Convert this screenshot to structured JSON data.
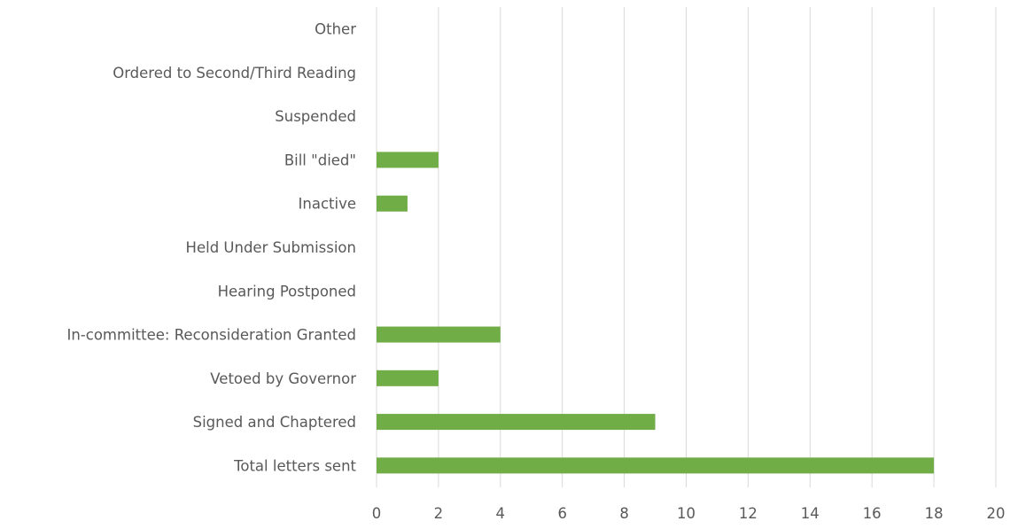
{
  "chart_data": {
    "type": "bar",
    "orientation": "horizontal",
    "categories": [
      "Total letters sent",
      "Signed and Chaptered",
      "Vetoed by Governor",
      "In-committee: Reconsideration Granted",
      "Hearing Postponed",
      "Held Under Submission",
      "Inactive",
      "Bill \"died\"",
      "Suspended",
      "Ordered to Second/Third Reading",
      "Other"
    ],
    "values": [
      18,
      9,
      2,
      4,
      0,
      0,
      1,
      2,
      0,
      0,
      0
    ],
    "xlim": [
      0,
      20
    ],
    "xticks": [
      "0",
      "2",
      "4",
      "6",
      "8",
      "10",
      "12",
      "14",
      "16",
      "18",
      "20"
    ],
    "title": "",
    "xlabel": "",
    "ylabel": "",
    "grid": "vertical",
    "legend": "none",
    "bar_color": "#70ad47"
  }
}
